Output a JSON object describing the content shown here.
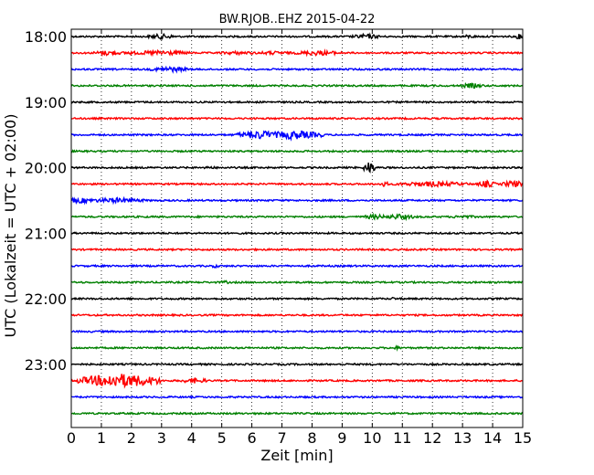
{
  "chart_data": {
    "type": "line",
    "title": "BW.RJOB..EHZ 2015-04-22",
    "xlabel": "Zeit  [min]",
    "ylabel": "UTC (Lokalzeit = UTC + 02:00)",
    "xlim": [
      0,
      15
    ],
    "x_ticks": [
      "0",
      "1",
      "2",
      "3",
      "4",
      "5",
      "6",
      "7",
      "8",
      "9",
      "10",
      "11",
      "12",
      "13",
      "14",
      "15"
    ],
    "y_tick_labels": [
      "18:00",
      "19:00",
      "20:00",
      "21:00",
      "22:00",
      "23:00"
    ],
    "vertical_grid": "dotted",
    "colors": [
      "#000000",
      "#ff0000",
      "#0000ff",
      "#008000"
    ],
    "series": [
      {
        "start": "18:00",
        "color": "#000000",
        "bursts": [
          [
            3.0,
            0.5,
            3
          ],
          [
            9.8,
            0.5,
            3
          ],
          [
            13.2,
            0.3,
            2
          ],
          [
            14.9,
            0.2,
            3
          ]
        ]
      },
      {
        "start": "18:15",
        "color": "#ff0000",
        "bursts": [
          [
            1.2,
            0.5,
            3
          ],
          [
            2.0,
            0.5,
            2
          ],
          [
            3.0,
            1.0,
            3
          ],
          [
            5.5,
            0.8,
            2
          ],
          [
            6.7,
            0.8,
            2
          ],
          [
            8.2,
            0.8,
            3
          ]
        ]
      },
      {
        "start": "18:30",
        "color": "#0000ff",
        "bursts": [
          [
            3.3,
            0.7,
            3
          ]
        ]
      },
      {
        "start": "18:45",
        "color": "#008000",
        "bursts": [
          [
            13.3,
            0.4,
            3
          ]
        ]
      },
      {
        "start": "19:00",
        "color": "#000000",
        "bursts": []
      },
      {
        "start": "19:15",
        "color": "#ff0000",
        "bursts": []
      },
      {
        "start": "19:30",
        "color": "#0000ff",
        "bursts": [
          [
            6.3,
            0.8,
            5
          ],
          [
            7.4,
            1.0,
            5
          ]
        ]
      },
      {
        "start": "19:45",
        "color": "#008000",
        "bursts": []
      },
      {
        "start": "20:00",
        "color": "#000000",
        "bursts": [
          [
            9.9,
            0.2,
            7
          ],
          [
            4.6,
            0.2,
            2
          ]
        ]
      },
      {
        "start": "20:15",
        "color": "#ff0000",
        "bursts": [
          [
            10.4,
            0.2,
            3
          ],
          [
            12.0,
            1.3,
            3
          ],
          [
            13.8,
            0.3,
            4
          ],
          [
            14.7,
            0.4,
            4
          ]
        ]
      },
      {
        "start": "20:30",
        "color": "#0000ff",
        "bursts": [
          [
            0.3,
            0.6,
            3
          ],
          [
            1.5,
            1.0,
            3
          ]
        ]
      },
      {
        "start": "20:45",
        "color": "#008000",
        "bursts": [
          [
            10.1,
            0.4,
            3
          ],
          [
            10.9,
            0.6,
            3
          ],
          [
            13.0,
            0.5,
            2
          ]
        ]
      },
      {
        "start": "21:00",
        "color": "#000000",
        "bursts": []
      },
      {
        "start": "21:15",
        "color": "#ff0000",
        "bursts": []
      },
      {
        "start": "21:30",
        "color": "#0000ff",
        "bursts": [
          [
            4.8,
            0.2,
            2
          ]
        ]
      },
      {
        "start": "21:45",
        "color": "#008000",
        "bursts": [
          [
            5.1,
            0.2,
            2
          ]
        ]
      },
      {
        "start": "22:00",
        "color": "#000000",
        "bursts": [
          [
            10.7,
            0.1,
            2
          ],
          [
            3.5,
            1.0,
            1
          ]
        ]
      },
      {
        "start": "22:15",
        "color": "#ff0000",
        "bursts": []
      },
      {
        "start": "22:30",
        "color": "#0000ff",
        "bursts": []
      },
      {
        "start": "22:45",
        "color": "#008000",
        "bursts": [
          [
            10.8,
            0.2,
            2
          ]
        ]
      },
      {
        "start": "23:00",
        "color": "#000000",
        "bursts": []
      },
      {
        "start": "23:15",
        "color": "#ff0000",
        "bursts": [
          [
            1.6,
            1.4,
            8
          ],
          [
            4.1,
            0.5,
            3
          ]
        ]
      },
      {
        "start": "23:30",
        "color": "#0000ff",
        "bursts": []
      },
      {
        "start": "23:45",
        "color": "#008000",
        "bursts": []
      }
    ]
  }
}
